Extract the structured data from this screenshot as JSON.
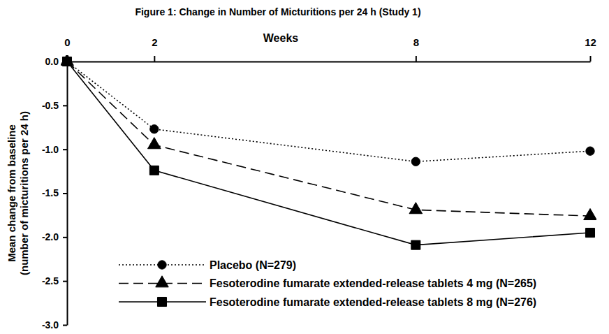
{
  "chart_data": {
    "type": "line",
    "title": "Figure 1: Change in Number of Micturitions per 24 h (Study 1)",
    "x_label": "Weeks",
    "y_label": [
      "Mean change from baseline",
      "(number of micturitions per 24 h)"
    ],
    "x": [
      0,
      2,
      8,
      12
    ],
    "xlim": [
      0,
      12
    ],
    "xticks": [
      0,
      2,
      8,
      12
    ],
    "ylim": [
      -3,
      0
    ],
    "yticks": [
      {
        "value": 0,
        "label": "0.0"
      },
      -0.5,
      {
        "value": -1,
        "label": "-1.0"
      },
      -1.5,
      {
        "value": -2,
        "label": "-2.0"
      },
      -2.5,
      {
        "value": -3,
        "label": "-3.0"
      }
    ],
    "grid": false,
    "legend": "lower left",
    "series": [
      {
        "name": "Placebo (N=279)",
        "color": "#000000",
        "marker": "circle",
        "line_style": "dotted",
        "values": [
          0,
          -0.77,
          -1.14,
          -1.02
        ]
      },
      {
        "name": "Fesoterodine fumarate extended-release tablets 4 mg (N=265)",
        "color": "#000000",
        "marker": "triangle",
        "line_style": "dashed",
        "values": [
          0,
          -0.95,
          -1.69,
          -1.76
        ]
      },
      {
        "name": "Fesoterodine fumarate extended-release tablets 8 mg (N=276)",
        "color": "#000000",
        "marker": "square",
        "line_style": "solid",
        "values": [
          0,
          -1.24,
          -2.09,
          -1.95
        ]
      }
    ]
  }
}
